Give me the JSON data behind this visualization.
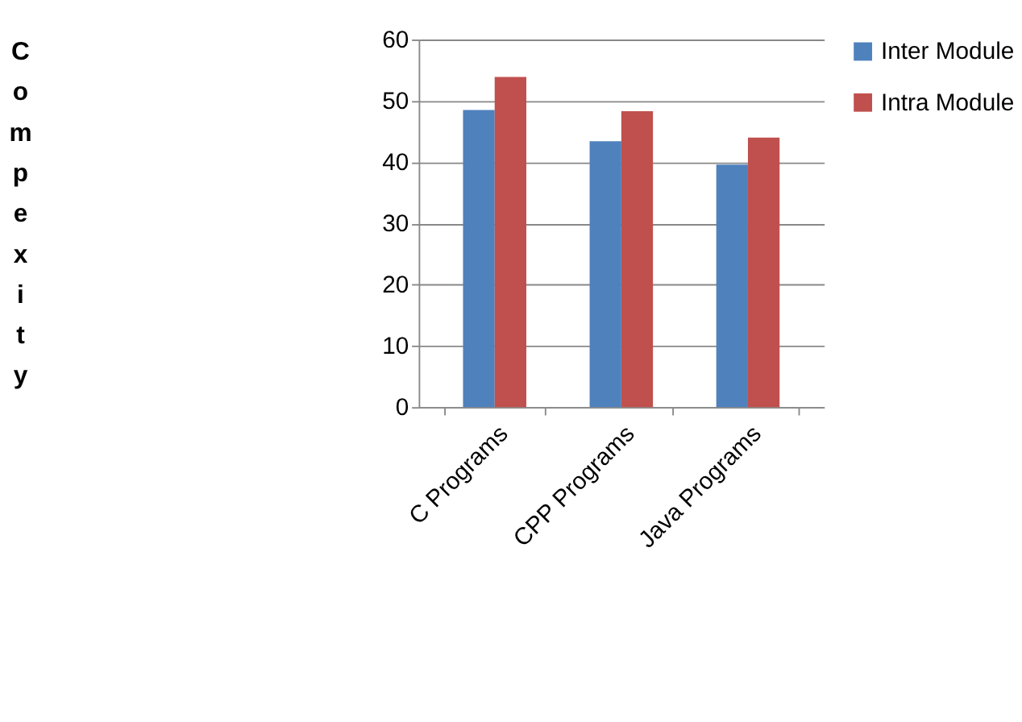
{
  "chart_data": {
    "type": "bar",
    "ylabel": "Compexity",
    "categories": [
      "C Programs",
      "CPP Programs",
      "Java Programs"
    ],
    "series": [
      {
        "name": "Inter Module",
        "color": "#4f81bd",
        "values": [
          48.5,
          43.4,
          39.6
        ]
      },
      {
        "name": "Intra Module",
        "color": "#c0504d",
        "values": [
          53.9,
          48.3,
          44.0
        ]
      }
    ],
    "ylim": [
      0,
      60
    ],
    "yticks": [
      0,
      10,
      20,
      30,
      40,
      50,
      60
    ],
    "grid": "y",
    "legend": "right"
  }
}
